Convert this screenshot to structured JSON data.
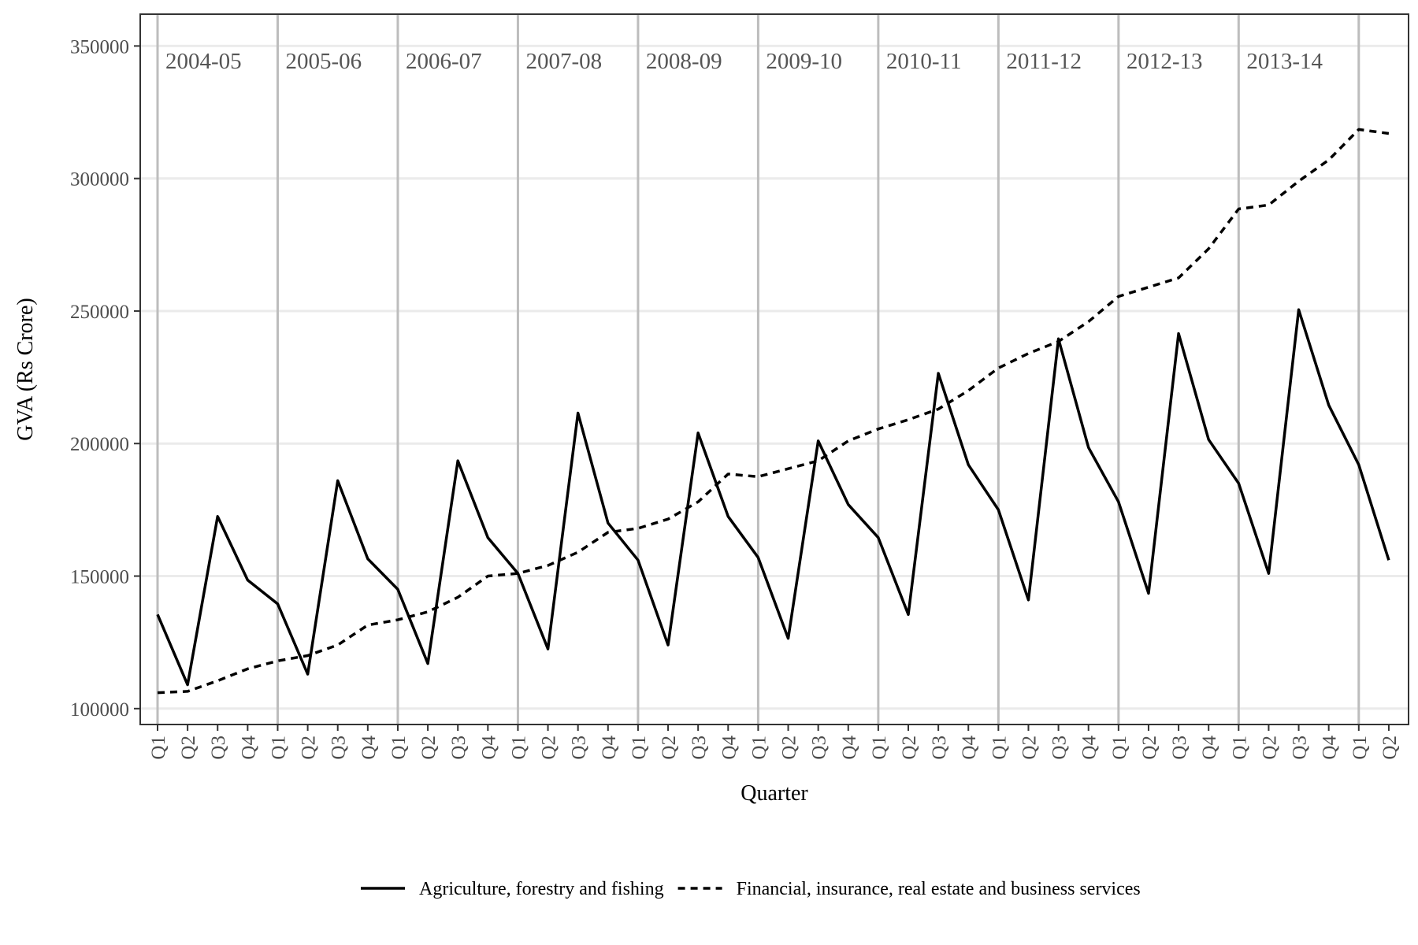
{
  "chart_data": {
    "type": "line",
    "xlabel": "Quarter",
    "ylabel": "GVA (Rs Crore)",
    "ylim": [
      94000,
      362000
    ],
    "yticks": [
      100000,
      150000,
      200000,
      250000,
      300000,
      350000
    ],
    "grid": true,
    "legend_position": "bottom",
    "year_labels": [
      "2004-05",
      "2005-06",
      "2006-07",
      "2007-08",
      "2008-09",
      "2009-10",
      "2010-11",
      "2011-12",
      "2012-13",
      "2013-14"
    ],
    "categories": [
      "Q1",
      "Q2",
      "Q3",
      "Q4",
      "Q1",
      "Q2",
      "Q3",
      "Q4",
      "Q1",
      "Q2",
      "Q3",
      "Q4",
      "Q1",
      "Q2",
      "Q3",
      "Q4",
      "Q1",
      "Q2",
      "Q3",
      "Q4",
      "Q1",
      "Q2",
      "Q3",
      "Q4",
      "Q1",
      "Q2",
      "Q3",
      "Q4",
      "Q1",
      "Q2",
      "Q3",
      "Q4",
      "Q1",
      "Q2",
      "Q3",
      "Q4",
      "Q1",
      "Q2",
      "Q3",
      "Q4",
      "Q1",
      "Q2"
    ],
    "series": [
      {
        "name": "Agriculture, forestry and fishing",
        "line_style": "solid",
        "color": "#000000",
        "values": [
          135500,
          109000,
          172500,
          148500,
          139500,
          113000,
          186000,
          156500,
          145000,
          117000,
          193500,
          164500,
          151000,
          122500,
          211500,
          170000,
          156000,
          124000,
          204000,
          172500,
          157000,
          126500,
          201000,
          177000,
          164500,
          135500,
          226500,
          192000,
          175000,
          141000,
          239500,
          198500,
          178000,
          143500,
          241500,
          201500,
          185000,
          151000,
          250500,
          214500,
          192000,
          156000
        ]
      },
      {
        "name": "Financial, insurance, real estate and business services",
        "line_style": "dashed",
        "color": "#000000",
        "values": [
          106000,
          106500,
          110500,
          115000,
          118000,
          120000,
          124000,
          131500,
          133500,
          136500,
          142000,
          150000,
          151000,
          154000,
          159000,
          166500,
          168000,
          171500,
          178000,
          188500,
          187500,
          190500,
          193500,
          201000,
          205500,
          209000,
          213000,
          220000,
          228500,
          234000,
          238500,
          246000,
          255500,
          259000,
          262500,
          273500,
          288500,
          290000,
          299000,
          307000,
          318500,
          317000
        ]
      }
    ]
  }
}
